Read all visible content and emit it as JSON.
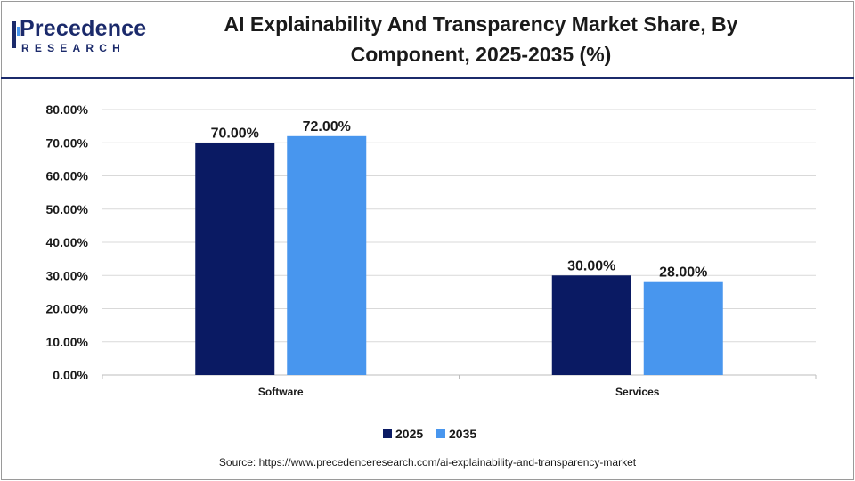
{
  "header": {
    "logo_word": "Precedence",
    "logo_sub": "RESEARCH",
    "title_line1": "AI Explainability And Transparency Market Share, By",
    "title_line2": "Component, 2025-2035 (%)"
  },
  "chart_data": {
    "type": "bar",
    "title": "AI Explainability And Transparency Market Share, By Component, 2025-2035 (%)",
    "categories": [
      "Software",
      "Services"
    ],
    "series": [
      {
        "name": "2025",
        "values": [
          70.0,
          30.0
        ],
        "color": "#0a1a63"
      },
      {
        "name": "2035",
        "values": [
          72.0,
          28.0
        ],
        "color": "#4896ee"
      }
    ],
    "data_labels": [
      [
        "70.00%",
        "30.00%"
      ],
      [
        "72.00%",
        "28.00%"
      ]
    ],
    "y_ticks": [
      "0.00%",
      "10.00%",
      "20.00%",
      "30.00%",
      "40.00%",
      "50.00%",
      "60.00%",
      "70.00%",
      "80.00%"
    ],
    "ylim": [
      0,
      80
    ],
    "xlabel": "",
    "ylabel": "",
    "grid": true,
    "legend": "bottom-center"
  },
  "source": "Source: https://www.precedenceresearch.com/ai-explainability-and-transparency-market"
}
